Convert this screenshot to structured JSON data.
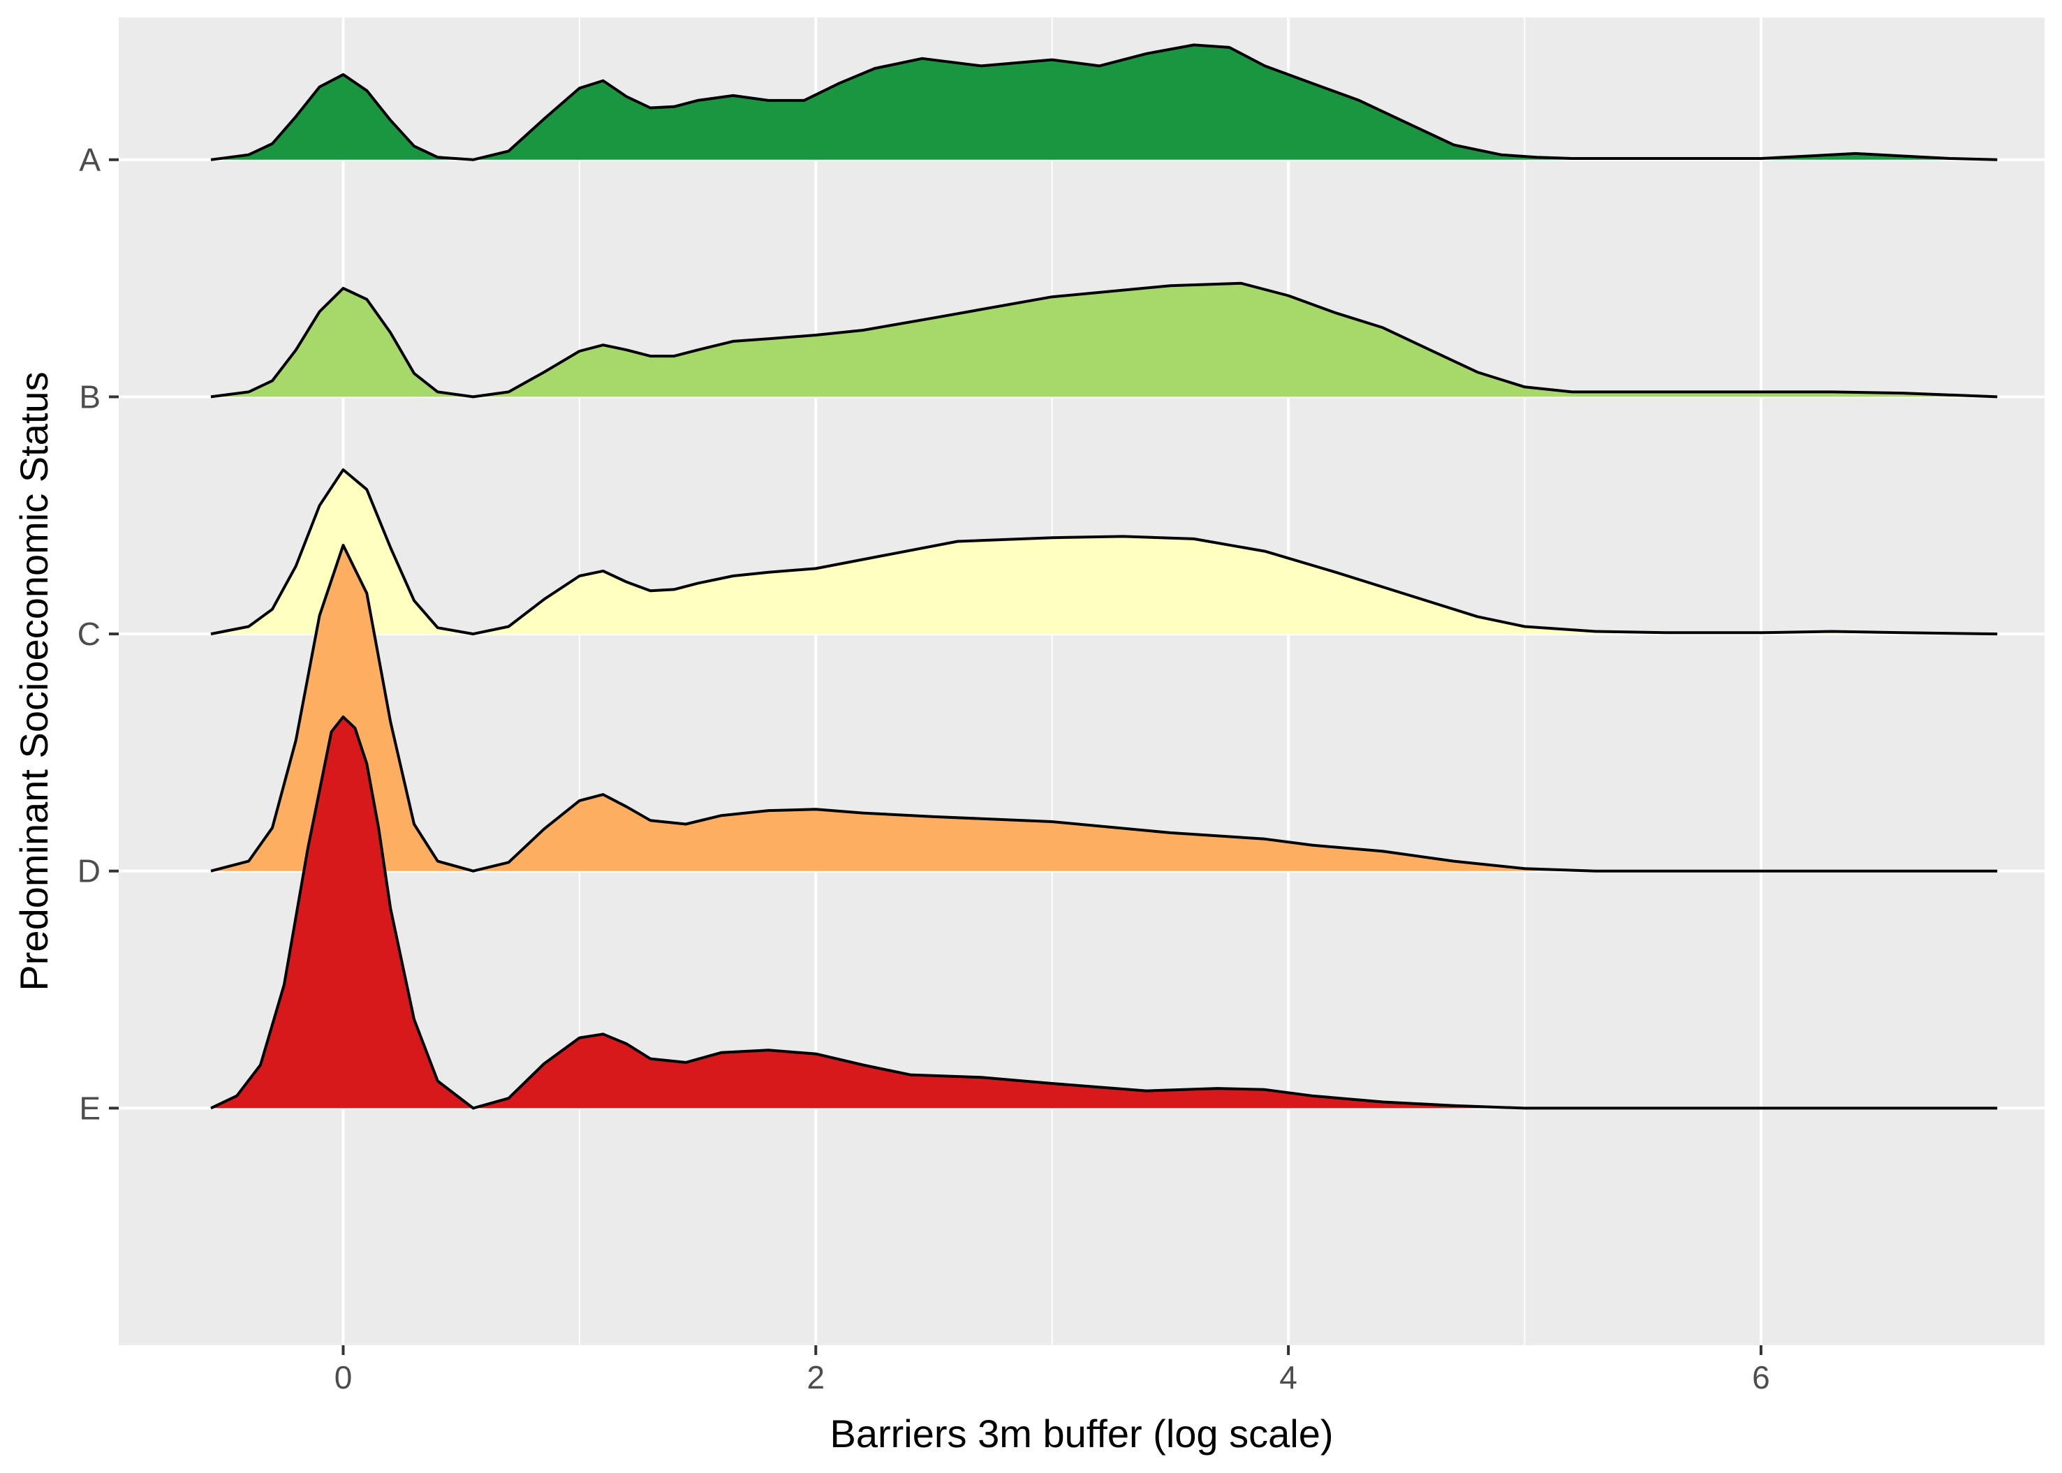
{
  "chart_data": {
    "type": "ridgeline",
    "title": "",
    "xlabel": "Barriers 3m buffer (log scale)",
    "ylabel": "Predominant Socioeconomic Status",
    "xlim": [
      -0.95,
      7.2
    ],
    "x_ticks": [
      0,
      2,
      4,
      6
    ],
    "x_tick_labels": [
      "0",
      "2",
      "4",
      "6"
    ],
    "y_categories": [
      "A",
      "B",
      "C",
      "D",
      "E"
    ],
    "ridge_scale": 1.0,
    "grid": true,
    "legend": "none",
    "panel_background": "#EBEBEB",
    "series": [
      {
        "category": "A",
        "color": "#1A9641",
        "x": [
          -0.56,
          -0.4,
          -0.3,
          -0.2,
          -0.1,
          0.0,
          0.1,
          0.2,
          0.3,
          0.4,
          0.55,
          0.7,
          0.85,
          1.0,
          1.1,
          1.2,
          1.3,
          1.4,
          1.5,
          1.65,
          1.8,
          1.95,
          2.1,
          2.25,
          2.45,
          2.7,
          3.0,
          3.2,
          3.4,
          3.6,
          3.75,
          3.9,
          4.1,
          4.3,
          4.5,
          4.7,
          4.9,
          5.05,
          5.2,
          5.5,
          5.8,
          6.0,
          6.2,
          6.4,
          6.6,
          6.8,
          7.0
        ],
        "density": [
          0.0,
          0.04,
          0.13,
          0.35,
          0.59,
          0.69,
          0.56,
          0.32,
          0.11,
          0.02,
          0.0,
          0.07,
          0.33,
          0.58,
          0.64,
          0.51,
          0.42,
          0.43,
          0.48,
          0.52,
          0.48,
          0.48,
          0.62,
          0.74,
          0.82,
          0.76,
          0.81,
          0.76,
          0.86,
          0.93,
          0.91,
          0.76,
          0.62,
          0.48,
          0.3,
          0.12,
          0.04,
          0.02,
          0.01,
          0.01,
          0.01,
          0.01,
          0.03,
          0.05,
          0.03,
          0.01,
          0.0
        ]
      },
      {
        "category": "B",
        "color": "#A6D96A",
        "x": [
          -0.56,
          -0.4,
          -0.3,
          -0.2,
          -0.1,
          0.0,
          0.1,
          0.2,
          0.3,
          0.4,
          0.55,
          0.7,
          0.85,
          1.0,
          1.1,
          1.2,
          1.3,
          1.4,
          1.5,
          1.65,
          1.8,
          2.0,
          2.2,
          2.5,
          3.0,
          3.5,
          3.8,
          4.0,
          4.2,
          4.4,
          4.6,
          4.8,
          5.0,
          5.2,
          5.5,
          6.0,
          6.3,
          6.6,
          7.0
        ],
        "density": [
          0.0,
          0.04,
          0.13,
          0.38,
          0.69,
          0.88,
          0.79,
          0.52,
          0.19,
          0.04,
          0.0,
          0.04,
          0.2,
          0.37,
          0.42,
          0.38,
          0.33,
          0.33,
          0.38,
          0.45,
          0.47,
          0.5,
          0.54,
          0.64,
          0.81,
          0.9,
          0.92,
          0.82,
          0.68,
          0.56,
          0.38,
          0.2,
          0.08,
          0.04,
          0.04,
          0.04,
          0.04,
          0.03,
          0.0
        ]
      },
      {
        "category": "C",
        "color": "#FFFFBF",
        "x": [
          -0.56,
          -0.4,
          -0.3,
          -0.2,
          -0.1,
          0.0,
          0.1,
          0.2,
          0.3,
          0.4,
          0.55,
          0.7,
          0.85,
          1.0,
          1.1,
          1.2,
          1.3,
          1.4,
          1.5,
          1.65,
          1.8,
          2.0,
          2.3,
          2.6,
          3.0,
          3.3,
          3.6,
          3.9,
          4.2,
          4.5,
          4.8,
          5.0,
          5.3,
          5.6,
          6.0,
          6.3,
          6.6,
          7.0
        ],
        "density": [
          0.0,
          0.06,
          0.2,
          0.55,
          1.04,
          1.33,
          1.17,
          0.7,
          0.27,
          0.05,
          0.0,
          0.06,
          0.28,
          0.47,
          0.51,
          0.42,
          0.35,
          0.36,
          0.41,
          0.47,
          0.5,
          0.53,
          0.64,
          0.75,
          0.78,
          0.79,
          0.77,
          0.67,
          0.5,
          0.32,
          0.14,
          0.06,
          0.02,
          0.01,
          0.01,
          0.02,
          0.01,
          0.0
        ]
      },
      {
        "category": "D",
        "color": "#FDAE61",
        "x": [
          -0.56,
          -0.4,
          -0.3,
          -0.2,
          -0.1,
          0.0,
          0.1,
          0.2,
          0.3,
          0.4,
          0.55,
          0.7,
          0.85,
          1.0,
          1.1,
          1.2,
          1.3,
          1.45,
          1.6,
          1.8,
          2.0,
          2.2,
          2.5,
          3.0,
          3.5,
          3.9,
          4.1,
          4.4,
          4.7,
          5.0,
          5.3,
          5.6,
          6.0,
          6.5,
          7.0
        ],
        "density": [
          0.0,
          0.08,
          0.35,
          1.06,
          2.07,
          2.64,
          2.25,
          1.21,
          0.38,
          0.08,
          0.0,
          0.07,
          0.34,
          0.57,
          0.62,
          0.52,
          0.41,
          0.38,
          0.45,
          0.49,
          0.5,
          0.47,
          0.44,
          0.4,
          0.31,
          0.26,
          0.21,
          0.16,
          0.08,
          0.02,
          0.0,
          0.0,
          0.0,
          0.0,
          0.0
        ]
      },
      {
        "category": "E",
        "color": "#D7191C",
        "x": [
          -0.56,
          -0.45,
          -0.35,
          -0.25,
          -0.15,
          -0.05,
          0.0,
          0.05,
          0.1,
          0.15,
          0.2,
          0.3,
          0.4,
          0.55,
          0.7,
          0.85,
          1.0,
          1.1,
          1.2,
          1.3,
          1.45,
          1.6,
          1.8,
          2.0,
          2.2,
          2.4,
          2.7,
          3.0,
          3.4,
          3.7,
          3.9,
          4.1,
          4.4,
          4.7,
          5.0,
          5.5,
          6.0,
          6.5,
          7.0
        ],
        "density": [
          0.0,
          0.1,
          0.35,
          1.0,
          2.1,
          3.05,
          3.17,
          3.08,
          2.79,
          2.27,
          1.62,
          0.72,
          0.22,
          0.0,
          0.08,
          0.36,
          0.57,
          0.6,
          0.52,
          0.4,
          0.37,
          0.45,
          0.47,
          0.44,
          0.35,
          0.27,
          0.25,
          0.2,
          0.14,
          0.16,
          0.15,
          0.1,
          0.05,
          0.02,
          0.0,
          0.0,
          0.0,
          0.0,
          0.0
        ]
      }
    ]
  }
}
